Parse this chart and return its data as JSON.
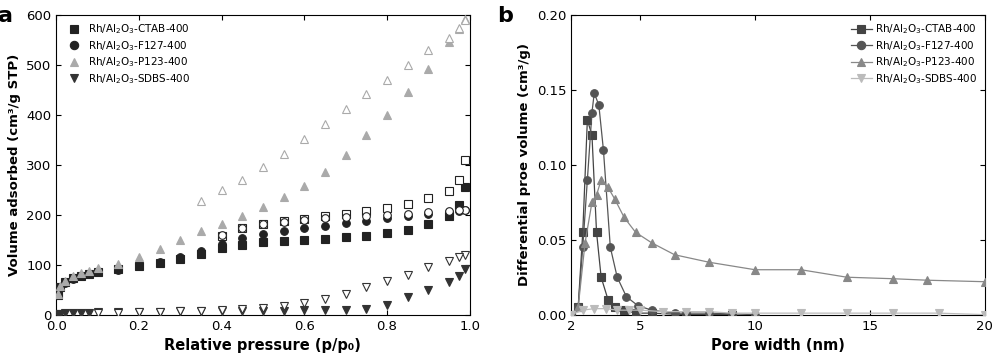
{
  "panel_a": {
    "xlabel": "Relative pressure (p/p₀)",
    "ylabel": "Volume adsorbed (cm³/g STP)",
    "xlim": [
      0.0,
      1.0
    ],
    "ylim": [
      0,
      600
    ],
    "yticks": [
      0,
      100,
      200,
      300,
      400,
      500,
      600
    ],
    "xticks": [
      0.0,
      0.2,
      0.4,
      0.6,
      0.8,
      1.0
    ],
    "series": {
      "CTAB": {
        "color_ads": "#222222",
        "color_des": "#222222",
        "adsorption_x": [
          0.005,
          0.01,
          0.02,
          0.04,
          0.06,
          0.08,
          0.1,
          0.15,
          0.2,
          0.25,
          0.3,
          0.35,
          0.4,
          0.45,
          0.5,
          0.55,
          0.6,
          0.65,
          0.7,
          0.75,
          0.8,
          0.85,
          0.9,
          0.95,
          0.975,
          0.99
        ],
        "adsorption_y": [
          40,
          55,
          65,
          73,
          78,
          82,
          85,
          91,
          97,
          103,
          112,
          122,
          133,
          140,
          145,
          148,
          150,
          152,
          155,
          158,
          163,
          170,
          182,
          198,
          220,
          255
        ],
        "desorption_x": [
          0.99,
          0.975,
          0.95,
          0.9,
          0.85,
          0.8,
          0.75,
          0.7,
          0.65,
          0.6,
          0.55,
          0.5,
          0.45,
          0.4
        ],
        "desorption_y": [
          310,
          270,
          248,
          233,
          222,
          213,
          207,
          202,
          197,
          192,
          187,
          181,
          173,
          158
        ],
        "marker_ads": "s",
        "marker_des": "s"
      },
      "F127": {
        "color_ads": "#222222",
        "color_des": "#222222",
        "adsorption_x": [
          0.005,
          0.01,
          0.02,
          0.04,
          0.06,
          0.08,
          0.1,
          0.15,
          0.2,
          0.25,
          0.3,
          0.35,
          0.4,
          0.45,
          0.5,
          0.55,
          0.6,
          0.65,
          0.7,
          0.75,
          0.8,
          0.85,
          0.9,
          0.95,
          0.975,
          0.99
        ],
        "adsorption_y": [
          40,
          55,
          64,
          72,
          77,
          81,
          85,
          90,
          97,
          105,
          116,
          127,
          142,
          153,
          162,
          168,
          173,
          178,
          183,
          188,
          193,
          197,
          201,
          205,
          207,
          210
        ],
        "desorption_x": [
          0.99,
          0.975,
          0.95,
          0.9,
          0.85,
          0.8,
          0.75,
          0.7,
          0.65,
          0.6,
          0.55,
          0.5,
          0.45,
          0.4
        ],
        "desorption_y": [
          210,
          209,
          207,
          205,
          202,
          200,
          198,
          196,
          193,
          190,
          186,
          181,
          173,
          160
        ],
        "marker_ads": "o",
        "marker_des": "o"
      },
      "P123": {
        "color_ads": "#aaaaaa",
        "color_des": "#aaaaaa",
        "adsorption_x": [
          0.005,
          0.01,
          0.02,
          0.04,
          0.06,
          0.08,
          0.1,
          0.15,
          0.2,
          0.25,
          0.3,
          0.35,
          0.4,
          0.45,
          0.5,
          0.55,
          0.6,
          0.65,
          0.7,
          0.75,
          0.8,
          0.85,
          0.9,
          0.95,
          0.975,
          0.99
        ],
        "adsorption_y": [
          42,
          58,
          68,
          77,
          83,
          88,
          93,
          102,
          115,
          132,
          150,
          167,
          182,
          198,
          215,
          235,
          258,
          285,
          320,
          360,
          400,
          446,
          492,
          547,
          572,
          592
        ],
        "desorption_x": [
          0.99,
          0.975,
          0.95,
          0.9,
          0.85,
          0.8,
          0.75,
          0.7,
          0.65,
          0.6,
          0.55,
          0.5,
          0.45,
          0.4,
          0.35
        ],
        "desorption_y": [
          590,
          575,
          555,
          530,
          500,
          470,
          442,
          412,
          382,
          352,
          322,
          295,
          270,
          250,
          228
        ],
        "marker_ads": "^",
        "marker_des": "^"
      },
      "SDBS": {
        "color_ads": "#333333",
        "color_des": "#333333",
        "adsorption_x": [
          0.005,
          0.01,
          0.02,
          0.04,
          0.06,
          0.08,
          0.1,
          0.15,
          0.2,
          0.25,
          0.3,
          0.35,
          0.4,
          0.45,
          0.5,
          0.55,
          0.6,
          0.65,
          0.7,
          0.75,
          0.8,
          0.85,
          0.9,
          0.95,
          0.975,
          0.99
        ],
        "adsorption_y": [
          1,
          2,
          3,
          3,
          4,
          4,
          5,
          5,
          6,
          6,
          7,
          7,
          7,
          8,
          8,
          8,
          9,
          9,
          10,
          12,
          20,
          35,
          50,
          65,
          78,
          92
        ],
        "desorption_x": [
          0.99,
          0.975,
          0.95,
          0.9,
          0.85,
          0.8,
          0.75,
          0.7,
          0.65,
          0.6,
          0.55,
          0.5,
          0.45,
          0.4,
          0.35,
          0.3,
          0.25,
          0.2,
          0.15,
          0.1
        ],
        "desorption_y": [
          120,
          115,
          107,
          95,
          80,
          68,
          55,
          42,
          32,
          24,
          18,
          14,
          11,
          9,
          8,
          7,
          6,
          5,
          4,
          3
        ],
        "marker_ads": "v",
        "marker_des": "v"
      }
    },
    "legend": [
      {
        "label": "Rh/Al₂O₃-CTAB-400",
        "marker": "s",
        "fc": "#222222",
        "ec": "#222222"
      },
      {
        "label": "Rh/Al₂O₃-F127-400",
        "marker": "o",
        "fc": "#222222",
        "ec": "#222222"
      },
      {
        "label": "Rh/Al₂O₃-P123-400",
        "marker": "^",
        "fc": "#aaaaaa",
        "ec": "#aaaaaa"
      },
      {
        "label": "Rh/Al₂O₃-SDBS-400",
        "marker": "v",
        "fc": "#333333",
        "ec": "#333333"
      }
    ]
  },
  "panel_b": {
    "xlabel": "Pore width (nm)",
    "ylabel": "Differential proe volume (cm³/g)",
    "xlim": [
      2,
      20
    ],
    "ylim": [
      0.0,
      0.2
    ],
    "yticks": [
      0.0,
      0.05,
      0.1,
      0.15,
      0.2
    ],
    "xticks": [
      2,
      5,
      10,
      15,
      20
    ],
    "series": {
      "CTAB": {
        "label": "Rh/Al₂O₃-CTAB-400",
        "color": "#444444",
        "x": [
          2.0,
          2.3,
          2.5,
          2.7,
          2.9,
          3.1,
          3.3,
          3.6,
          3.9,
          4.3,
          4.8,
          5.5,
          7.0,
          9.0
        ],
        "y": [
          0.0,
          0.005,
          0.055,
          0.13,
          0.12,
          0.055,
          0.025,
          0.01,
          0.005,
          0.003,
          0.001,
          0.001,
          0.0,
          0.0
        ],
        "marker": "s"
      },
      "F127": {
        "label": "Rh/Al₂O₃-F127-400",
        "color": "#555555",
        "x": [
          2.0,
          2.3,
          2.5,
          2.7,
          2.9,
          3.0,
          3.2,
          3.4,
          3.7,
          4.0,
          4.4,
          4.9,
          5.5,
          6.5,
          8.0,
          10.0
        ],
        "y": [
          0.0,
          0.005,
          0.045,
          0.09,
          0.135,
          0.148,
          0.14,
          0.11,
          0.045,
          0.025,
          0.012,
          0.006,
          0.003,
          0.001,
          0.001,
          0.0
        ],
        "marker": "o"
      },
      "P123": {
        "label": "Rh/Al₂O₃-P123-400",
        "color": "#888888",
        "x": [
          2.0,
          2.3,
          2.6,
          2.9,
          3.1,
          3.3,
          3.6,
          3.9,
          4.3,
          4.8,
          5.5,
          6.5,
          8.0,
          10.0,
          12.0,
          14.0,
          16.0,
          17.5,
          20.0
        ],
        "y": [
          0.0,
          0.005,
          0.048,
          0.075,
          0.08,
          0.09,
          0.085,
          0.077,
          0.065,
          0.055,
          0.048,
          0.04,
          0.035,
          0.03,
          0.03,
          0.025,
          0.024,
          0.023,
          0.022
        ],
        "marker": "^"
      },
      "SDBS": {
        "label": "Rh/Al₂O₃-SDBS-400",
        "color": "#bbbbbb",
        "x": [
          2.0,
          2.5,
          3.0,
          3.5,
          4.0,
          4.5,
          5.0,
          6.0,
          7.0,
          8.0,
          9.0,
          10.0,
          12.0,
          14.0,
          16.0,
          18.0,
          20.0
        ],
        "y": [
          0.0,
          0.003,
          0.004,
          0.004,
          0.003,
          0.003,
          0.003,
          0.002,
          0.002,
          0.002,
          0.001,
          0.001,
          0.001,
          0.001,
          0.001,
          0.001,
          0.0
        ],
        "marker": "v"
      }
    },
    "legend": [
      {
        "label": "Rh/Al₂O₃-CTAB-400",
        "marker": "s",
        "color": "#444444"
      },
      {
        "label": "Rh/Al₂O₃-F127-400",
        "marker": "o",
        "color": "#555555"
      },
      {
        "label": "Rh/Al₂O₃-P123-400",
        "marker": "^",
        "color": "#888888"
      },
      {
        "label": "Rh/Al₂O₃-SDBS-400",
        "marker": "v",
        "color": "#bbbbbb"
      }
    ]
  }
}
